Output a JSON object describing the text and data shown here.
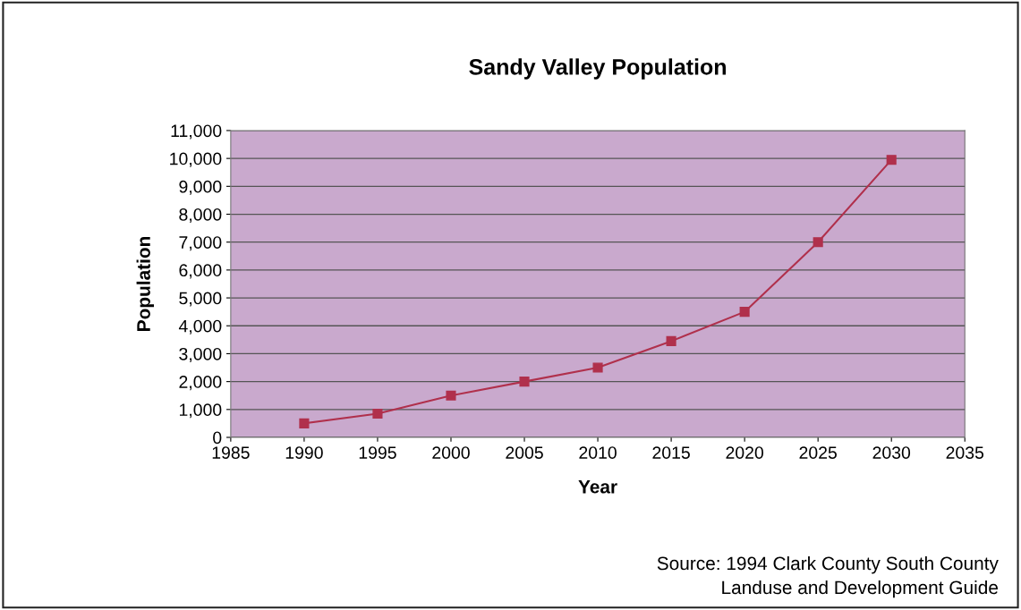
{
  "chart_data": {
    "type": "line",
    "title": "Sandy Valley Population",
    "xlabel": "Year",
    "ylabel": "Population",
    "x": [
      1990,
      1995,
      2000,
      2005,
      2010,
      2015,
      2020,
      2025,
      2030
    ],
    "series": [
      {
        "color": "#b0304c",
        "values": [
          500,
          850,
          1500,
          2000,
          2500,
          3450,
          4500,
          7000,
          9950
        ]
      }
    ],
    "xlim": [
      1985,
      2035
    ],
    "xticks": [
      1985,
      1990,
      1995,
      2000,
      2005,
      2010,
      2015,
      2020,
      2025,
      2030,
      2035
    ],
    "ylim": [
      0,
      11000
    ],
    "yticks": [
      {
        "value": 0,
        "label": "0"
      },
      {
        "value": 1000,
        "label": "1,000"
      },
      {
        "value": 2000,
        "label": "2,000"
      },
      {
        "value": 3000,
        "label": "3,000"
      },
      {
        "value": 4000,
        "label": "4,000"
      },
      {
        "value": 5000,
        "label": "5,000"
      },
      {
        "value": 6000,
        "label": "6,000"
      },
      {
        "value": 7000,
        "label": "7,000"
      },
      {
        "value": 8000,
        "label": "8,000"
      },
      {
        "value": 9000,
        "label": "9,000"
      },
      {
        "value": 10000,
        "label": "10,000"
      },
      {
        "value": 11000,
        "label": "11,000"
      }
    ],
    "grid": "y",
    "marker": "square",
    "line_style": "solid",
    "legend": false,
    "annotations": [
      "Source: 1994 Clark County South County\nLanduse and Development Guide"
    ]
  }
}
